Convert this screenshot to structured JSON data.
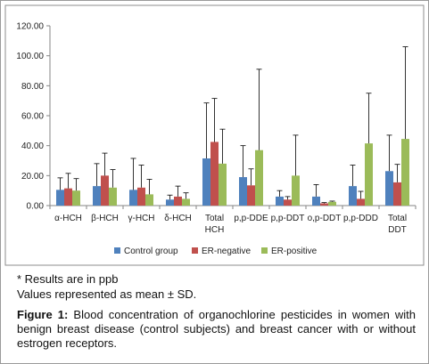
{
  "chart_data": {
    "type": "bar",
    "categories": [
      [
        "α-HCH"
      ],
      [
        "β-HCH"
      ],
      [
        "γ-HCH"
      ],
      [
        "δ-HCH"
      ],
      [
        "Total",
        "HCH"
      ],
      [
        "p,p-DDE"
      ],
      [
        "p,p-DDT"
      ],
      [
        "o,p-DDT"
      ],
      [
        "p,p-DDD"
      ],
      [
        "Total",
        "DDT"
      ]
    ],
    "series": [
      {
        "name": "Control group",
        "color": "#4f81bd",
        "values": [
          10.5,
          13,
          10.5,
          4,
          31.5,
          19,
          6,
          6,
          13,
          23
        ],
        "errors": [
          8,
          15,
          21,
          3,
          37,
          21,
          4,
          8,
          14,
          24
        ]
      },
      {
        "name": "ER-negative",
        "color": "#c0504d",
        "values": [
          11.5,
          20,
          12,
          6,
          42.5,
          13.5,
          4,
          1.5,
          4.5,
          15.5
        ],
        "errors": [
          10,
          15,
          15,
          7,
          29,
          11,
          2,
          0.5,
          5,
          12
        ]
      },
      {
        "name": "ER-positive",
        "color": "#9bbb59",
        "values": [
          10,
          12,
          7.5,
          4.5,
          28,
          37,
          20,
          2.5,
          41.5,
          44.5
        ],
        "errors": [
          8,
          12,
          10,
          4,
          23,
          54,
          27,
          0.5,
          33.5,
          61.5
        ]
      }
    ],
    "y_ticks": [
      "0.00",
      "20.00",
      "40.00",
      "60.00",
      "80.00",
      "100.00",
      "120.00"
    ],
    "ylim": [
      0,
      120
    ],
    "legend_position": "bottom",
    "grid": false
  },
  "notes": {
    "line1": "* Results are in ppb",
    "line2": "Values represented as mean ± SD."
  },
  "caption": {
    "label": "Figure 1:",
    "text": " Blood concentration of organochlorine pesticides in women with benign breast disease (control subjects) and breast cancer with or without estrogen receptors."
  }
}
